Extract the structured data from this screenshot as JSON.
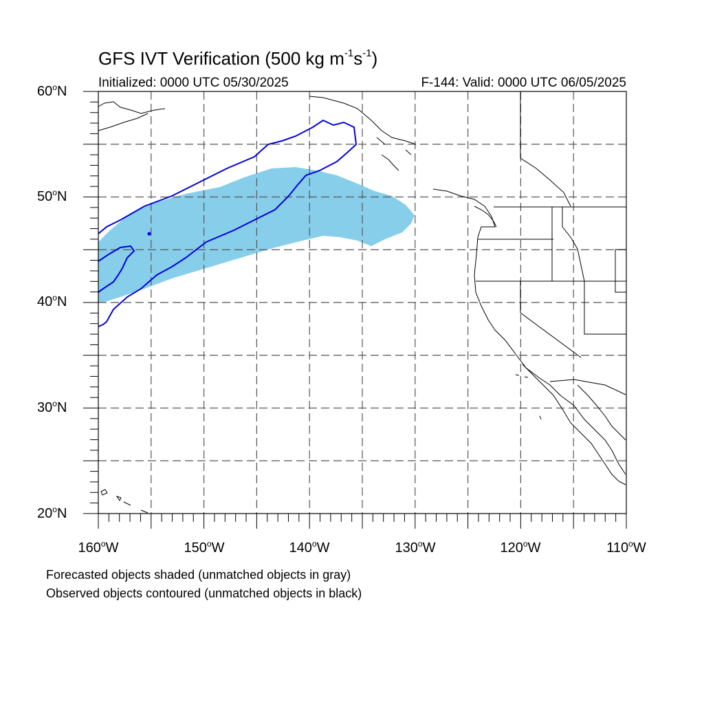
{
  "title_main": "GFS IVT Verification (500 kg m",
  "title_exp1": "-1",
  "title_s": "s",
  "title_exp2": "-1",
  "title_close": ")",
  "init_label": "Initialized: 0000 UTC 05/30/2025",
  "valid_label": "F-144: Valid: 0000 UTC 06/05/2025",
  "lat_ticks": [
    {
      "num": "60",
      "deg": "o",
      "dir": "N"
    },
    {
      "num": "50",
      "deg": "o",
      "dir": "N"
    },
    {
      "num": "40",
      "deg": "o",
      "dir": "N"
    },
    {
      "num": "30",
      "deg": "o",
      "dir": "N"
    },
    {
      "num": "20",
      "deg": "o",
      "dir": "N"
    }
  ],
  "lon_ticks": [
    {
      "num": "160",
      "deg": "o",
      "dir": "W"
    },
    {
      "num": "150",
      "deg": "o",
      "dir": "W"
    },
    {
      "num": "140",
      "deg": "o",
      "dir": "W"
    },
    {
      "num": "130",
      "deg": "o",
      "dir": "W"
    },
    {
      "num": "120",
      "deg": "o",
      "dir": "W"
    },
    {
      "num": "110",
      "deg": "o",
      "dir": "W"
    }
  ],
  "note_forecast": "Forecasted objects shaded (unmatched objects in gray)",
  "note_observed": "Observed objects contoured (unmatched objects in black)",
  "colors": {
    "forecast_fill": "#87ceeb",
    "observed_contour": "#0000e0",
    "coastline": "#000000",
    "grid": "#555555"
  },
  "map": {
    "lon_range": [
      -160,
      -110
    ],
    "lat_range": [
      20,
      60
    ],
    "projection": "cylindrical-equidistant",
    "grid": "dashed, every 5 degrees"
  }
}
